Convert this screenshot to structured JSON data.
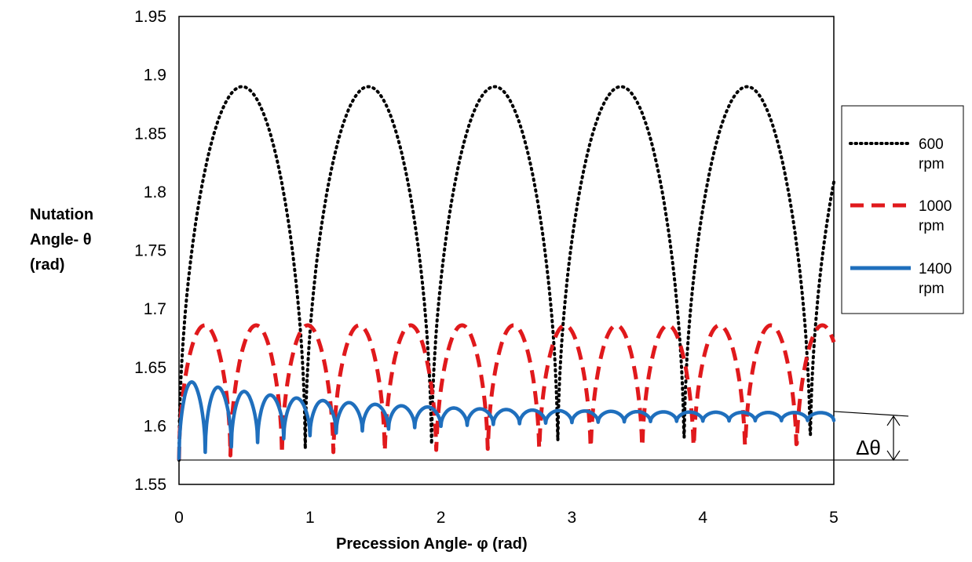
{
  "chart_data": {
    "type": "line",
    "title": "",
    "xlabel": "Precession Angle- φ (rad)",
    "ylabel_lines": [
      "Nutation",
      "Angle- θ",
      "(rad)"
    ],
    "xlim": [
      0,
      5
    ],
    "ylim": [
      1.55,
      1.95
    ],
    "x_ticks": [
      0,
      1,
      2,
      3,
      4,
      5
    ],
    "x_tick_labels": [
      "0",
      "1",
      "2",
      "3",
      "4",
      "5"
    ],
    "y_ticks": [
      1.55,
      1.6,
      1.65,
      1.7,
      1.75,
      1.8,
      1.85,
      1.9,
      1.95
    ],
    "y_tick_labels": [
      "1.55",
      "1.6",
      "1.65",
      "1.7",
      "1.75",
      "1.8",
      "1.85",
      "1.9",
      "1.95"
    ],
    "grid": false,
    "legend_position": "right",
    "series": [
      {
        "name_lines": [
          "600",
          "rpm"
        ],
        "color": "#000000",
        "style": "dotted",
        "min": 1.5708,
        "max": 1.89,
        "period": 0.964,
        "phase_offset": 0,
        "amplitude_decay": [
          0,
          0
        ]
      },
      {
        "name_lines": [
          "1000",
          "rpm"
        ],
        "color": "#e0191c",
        "style": "dashed",
        "min": 1.5708,
        "max": 1.686,
        "period": 0.393,
        "phase_offset": 0,
        "amplitude_decay": [
          0,
          0
        ]
      },
      {
        "name_lines": [
          "1400",
          "rpm"
        ],
        "color": "#1f6fbd",
        "style": "solid",
        "min_start": 1.572,
        "min_end": 1.605,
        "max_start": 1.64,
        "max_end": 1.611,
        "period": 0.2,
        "phase_offset": 0
      }
    ],
    "annotation": {
      "label": "Δθ",
      "upper_value": 1.611,
      "lower_value": 1.5708
    }
  }
}
